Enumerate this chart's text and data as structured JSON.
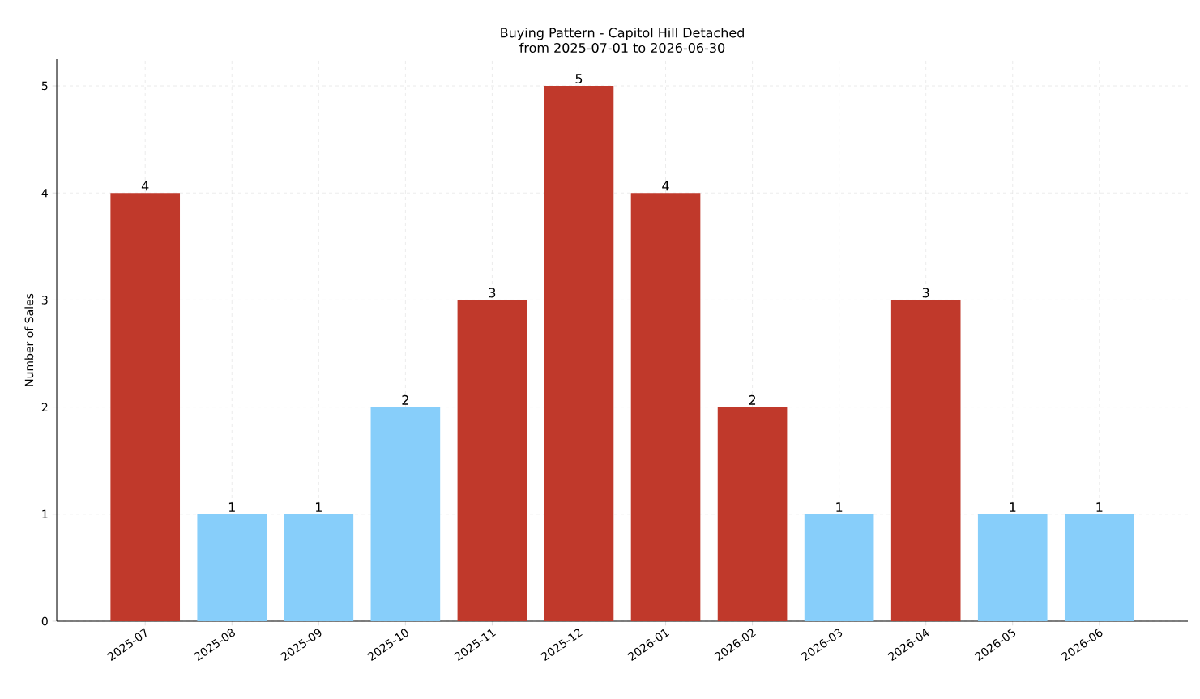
{
  "chart_data": {
    "type": "bar",
    "title": "Buying Pattern - Capitol Hill Detached",
    "subtitle": "from 2025-07-01 to 2026-06-30",
    "ylabel": "Number of Sales",
    "categories": [
      "2025-07",
      "2025-08",
      "2025-09",
      "2025-10",
      "2025-11",
      "2025-12",
      "2026-01",
      "2026-02",
      "2026-03",
      "2026-04",
      "2026-05",
      "2026-06"
    ],
    "values": [
      4,
      1,
      1,
      2,
      3,
      5,
      4,
      2,
      1,
      3,
      1,
      1
    ],
    "colors": [
      "#c0392b",
      "#87cefa",
      "#87cefa",
      "#87cefa",
      "#c0392b",
      "#c0392b",
      "#c0392b",
      "#c0392b",
      "#87cefa",
      "#c0392b",
      "#87cefa",
      "#87cefa"
    ],
    "ylim": [
      0,
      5.25
    ],
    "yticks": [
      0,
      1,
      2,
      3,
      4,
      5
    ],
    "grid": true,
    "data_labels": true
  }
}
